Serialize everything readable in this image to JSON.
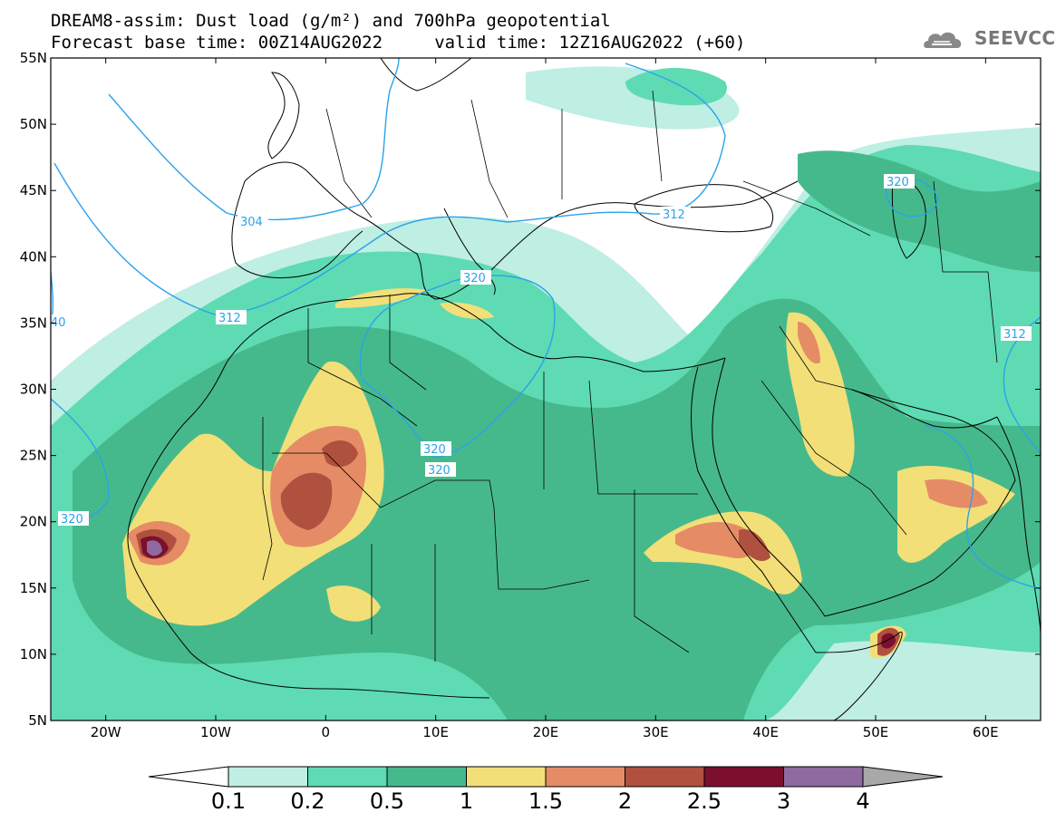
{
  "header": {
    "line1": "DREAM8-assim: Dust load (g/m²) and 700hPa geopotential",
    "line2": "Forecast base time: 00Z14AUG2022     valid time: 12Z16AUG2022 (+60)"
  },
  "logo": {
    "text": "SEEVCCC",
    "icon": "cloud-logo-icon"
  },
  "map": {
    "lon_range": [
      -25,
      65
    ],
    "lat_range": [
      5,
      55
    ],
    "lat_ticks": [
      "55N",
      "50N",
      "45N",
      "40N",
      "35N",
      "30N",
      "25N",
      "20N",
      "15N",
      "10N",
      "5N"
    ],
    "lon_ticks": [
      "20W",
      "10W",
      "0",
      "10E",
      "20E",
      "30E",
      "40E",
      "50E",
      "60E"
    ],
    "contour_labels": [
      "304",
      "312",
      "320",
      "320",
      "320",
      "320",
      "312",
      "312",
      "320",
      "40"
    ],
    "colors": {
      "level_0_1": "#bfeee3",
      "level_0_2": "#5edbb3",
      "level_0_5": "#46b98c",
      "level_1": "#f2df78",
      "level_1_5": "#e58c66",
      "level_2": "#b0503f",
      "level_2_5": "#7c0f2e",
      "level_3": "#8e6aa0",
      "level_4": "#a8a8a8",
      "contour": "#2aa3ea"
    }
  },
  "colorbar": {
    "labels": [
      "0.1",
      "0.2",
      "0.5",
      "1",
      "1.5",
      "2",
      "2.5",
      "3",
      "4"
    ],
    "colors": [
      "#bfeee3",
      "#5edbb3",
      "#46b98c",
      "#f2df78",
      "#e58c66",
      "#b0503f",
      "#7c0f2e",
      "#8e6aa0"
    ]
  }
}
